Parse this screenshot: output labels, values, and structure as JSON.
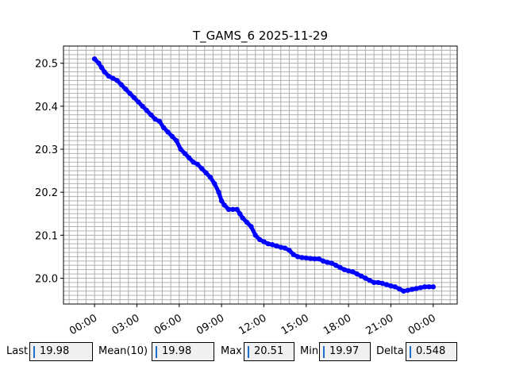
{
  "chart_data": {
    "type": "scatter",
    "title": "T_GAMS_6 2025-11-29",
    "xlabel": "",
    "ylabel": "",
    "x_tick_labels": [
      "00:00",
      "03:00",
      "06:00",
      "09:00",
      "12:00",
      "15:00",
      "18:00",
      "21:00",
      "00:00"
    ],
    "x_tick_hours": [
      0,
      3,
      6,
      9,
      12,
      15,
      18,
      21,
      24
    ],
    "xlim_hours": [
      -2.2,
      25.7
    ],
    "y_tick_labels": [
      "20.0",
      "20.1",
      "20.2",
      "20.3",
      "20.4",
      "20.5"
    ],
    "y_tick_values": [
      20.0,
      20.1,
      20.2,
      20.3,
      20.4,
      20.5
    ],
    "ylim": [
      19.94,
      20.54
    ],
    "grid": true,
    "series": [
      {
        "color": "#0000ff",
        "points": [
          [
            0.0,
            20.51
          ],
          [
            0.3,
            20.5
          ],
          [
            0.5,
            20.49
          ],
          [
            0.7,
            20.48
          ],
          [
            1.0,
            20.47
          ],
          [
            1.3,
            20.465
          ],
          [
            1.6,
            20.46
          ],
          [
            1.9,
            20.45
          ],
          [
            2.2,
            20.44
          ],
          [
            2.5,
            20.43
          ],
          [
            2.8,
            20.42
          ],
          [
            3.1,
            20.41
          ],
          [
            3.4,
            20.4
          ],
          [
            3.7,
            20.39
          ],
          [
            4.0,
            20.38
          ],
          [
            4.3,
            20.37
          ],
          [
            4.6,
            20.365
          ],
          [
            4.9,
            20.35
          ],
          [
            5.2,
            20.34
          ],
          [
            5.5,
            20.33
          ],
          [
            5.8,
            20.32
          ],
          [
            6.1,
            20.3
          ],
          [
            6.4,
            20.29
          ],
          [
            6.7,
            20.28
          ],
          [
            7.0,
            20.27
          ],
          [
            7.3,
            20.265
          ],
          [
            7.6,
            20.255
          ],
          [
            7.9,
            20.245
          ],
          [
            8.2,
            20.235
          ],
          [
            8.5,
            20.22
          ],
          [
            8.8,
            20.2
          ],
          [
            9.0,
            20.18
          ],
          [
            9.2,
            20.17
          ],
          [
            9.5,
            20.16
          ],
          [
            9.8,
            20.16
          ],
          [
            10.1,
            20.16
          ],
          [
            10.3,
            20.15
          ],
          [
            10.5,
            20.14
          ],
          [
            10.8,
            20.13
          ],
          [
            11.1,
            20.12
          ],
          [
            11.4,
            20.1
          ],
          [
            11.7,
            20.09
          ],
          [
            12.0,
            20.085
          ],
          [
            12.3,
            20.08
          ],
          [
            12.6,
            20.078
          ],
          [
            12.9,
            20.075
          ],
          [
            13.2,
            20.072
          ],
          [
            13.5,
            20.07
          ],
          [
            13.8,
            20.065
          ],
          [
            14.1,
            20.055
          ],
          [
            14.4,
            20.05
          ],
          [
            14.7,
            20.048
          ],
          [
            15.0,
            20.047
          ],
          [
            15.3,
            20.046
          ],
          [
            15.6,
            20.045
          ],
          [
            15.9,
            20.045
          ],
          [
            16.2,
            20.04
          ],
          [
            16.5,
            20.037
          ],
          [
            16.8,
            20.035
          ],
          [
            17.1,
            20.03
          ],
          [
            17.4,
            20.025
          ],
          [
            17.7,
            20.02
          ],
          [
            18.0,
            20.017
          ],
          [
            18.3,
            20.015
          ],
          [
            18.6,
            20.01
          ],
          [
            18.9,
            20.005
          ],
          [
            19.2,
            20.0
          ],
          [
            19.5,
            19.995
          ],
          [
            19.8,
            19.99
          ],
          [
            20.1,
            19.99
          ],
          [
            20.4,
            19.988
          ],
          [
            20.7,
            19.985
          ],
          [
            21.0,
            19.982
          ],
          [
            21.3,
            19.98
          ],
          [
            21.6,
            19.975
          ],
          [
            21.9,
            19.97
          ],
          [
            22.2,
            19.972
          ],
          [
            22.5,
            19.974
          ],
          [
            22.8,
            19.976
          ],
          [
            23.1,
            19.978
          ],
          [
            23.4,
            19.98
          ],
          [
            23.7,
            19.98
          ],
          [
            24.0,
            19.98
          ]
        ]
      }
    ]
  },
  "stats": {
    "last_label": "Last",
    "last_value": "19.98",
    "mean_label": "Mean(10)",
    "mean_value": "19.98",
    "max_label": "Max",
    "max_value": "20.51",
    "min_label": "Min",
    "min_value": "19.97",
    "delta_label": "Delta",
    "delta_value": "0.548"
  }
}
